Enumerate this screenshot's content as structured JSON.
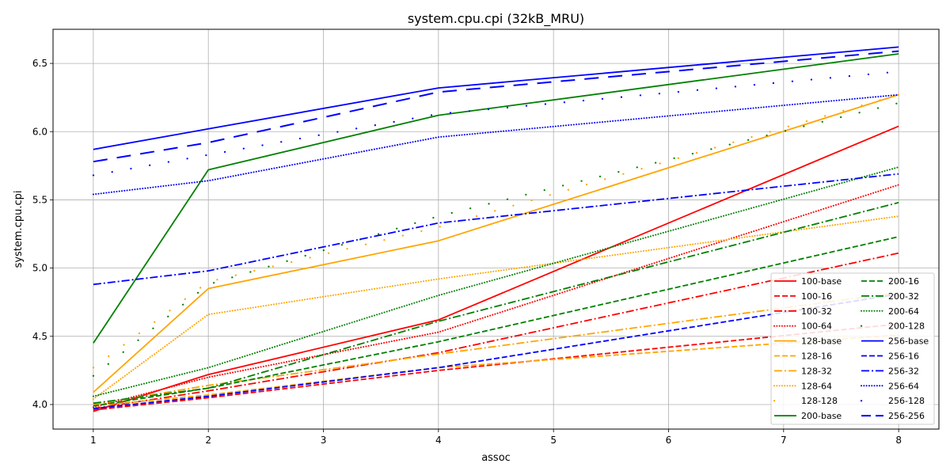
{
  "chart_data": {
    "type": "line",
    "title": "system.cpu.cpi (32kB_MRU)",
    "xlabel": "assoc",
    "ylabel": "system.cpu.cpi",
    "x": [
      1,
      2,
      4,
      8
    ],
    "xticks": [
      1,
      2,
      3,
      4,
      5,
      6,
      7,
      8
    ],
    "xlim": [
      0.65,
      8.35
    ],
    "yticks": [
      4.0,
      4.5,
      5.0,
      5.5,
      6.0,
      6.5
    ],
    "ylim": [
      3.82,
      6.75
    ],
    "grid": true,
    "legend_position": "lower-right",
    "series": [
      {
        "name": "100-base",
        "color": "#ff0000",
        "style": "solid",
        "values": [
          3.95,
          4.22,
          4.62,
          6.04
        ]
      },
      {
        "name": "100-16",
        "color": "#ff0000",
        "style": "dashed",
        "values": [
          3.96,
          4.05,
          4.25,
          4.59
        ]
      },
      {
        "name": "100-32",
        "color": "#ff0000",
        "style": "dashdot",
        "values": [
          3.97,
          4.1,
          4.38,
          5.11
        ]
      },
      {
        "name": "100-64",
        "color": "#ff0000",
        "style": "dotted",
        "values": [
          3.98,
          4.2,
          4.53,
          5.61
        ]
      },
      {
        "name": "128-base",
        "color": "#ffa500",
        "style": "solid",
        "values": [
          4.09,
          4.85,
          5.2,
          6.27
        ]
      },
      {
        "name": "128-16",
        "color": "#ffa500",
        "style": "dashed",
        "values": [
          3.99,
          4.07,
          4.27,
          4.51
        ]
      },
      {
        "name": "128-32",
        "color": "#ffa500",
        "style": "dashdot",
        "values": [
          4.0,
          4.14,
          4.37,
          4.82
        ]
      },
      {
        "name": "128-64",
        "color": "#ffa500",
        "style": "dotted",
        "values": [
          4.04,
          4.66,
          4.92,
          5.38
        ]
      },
      {
        "name": "128-128",
        "color": "#ffa500",
        "style": "sparse",
        "values": [
          4.27,
          4.9,
          5.3,
          6.27
        ]
      },
      {
        "name": "200-base",
        "color": "#008000",
        "style": "solid",
        "values": [
          4.45,
          5.72,
          6.12,
          6.57
        ]
      },
      {
        "name": "200-16",
        "color": "#008000",
        "style": "dashed",
        "values": [
          3.99,
          4.12,
          4.46,
          5.23
        ]
      },
      {
        "name": "200-32",
        "color": "#008000",
        "style": "dashdot",
        "values": [
          4.01,
          4.12,
          4.61,
          5.48
        ]
      },
      {
        "name": "200-64",
        "color": "#008000",
        "style": "dotted",
        "values": [
          4.06,
          4.27,
          4.8,
          5.74
        ]
      },
      {
        "name": "200-128",
        "color": "#008000",
        "style": "sparse",
        "values": [
          4.21,
          4.88,
          5.38,
          6.21
        ]
      },
      {
        "name": "256-base",
        "color": "#0000ff",
        "style": "solid",
        "values": [
          5.87,
          6.02,
          6.32,
          6.62
        ]
      },
      {
        "name": "256-16",
        "color": "#0000ff",
        "style": "dashed",
        "values": [
          3.97,
          4.06,
          4.27,
          4.81
        ]
      },
      {
        "name": "256-32",
        "color": "#0000ff",
        "style": "dashdot",
        "values": [
          4.88,
          4.98,
          5.33,
          5.69
        ]
      },
      {
        "name": "256-64",
        "color": "#0000ff",
        "style": "dotted",
        "values": [
          5.54,
          5.64,
          5.96,
          6.27
        ]
      },
      {
        "name": "256-128",
        "color": "#0000ff",
        "style": "sparse",
        "values": [
          5.68,
          5.83,
          6.13,
          6.44
        ]
      },
      {
        "name": "256-256",
        "color": "#0000ff",
        "style": "longdash",
        "values": [
          5.78,
          5.92,
          6.29,
          6.59
        ]
      }
    ]
  }
}
